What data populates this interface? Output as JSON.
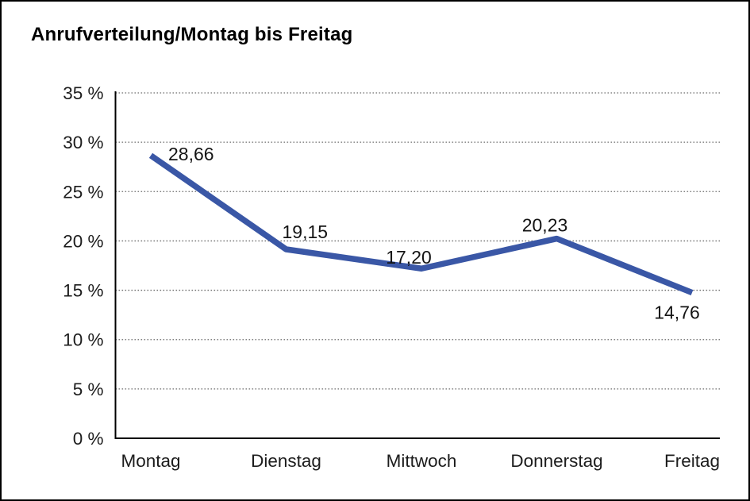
{
  "page": {
    "title": "Anrufverteilung/Montag bis Freitag"
  },
  "chart_data": {
    "type": "line",
    "title": "Anrufverteilung/Montag bis Freitag",
    "categories": [
      "Montag",
      "Dienstag",
      "Mittwoch",
      "Donnerstag",
      "Freitag"
    ],
    "series": [
      {
        "name": "Anrufverteilung",
        "values": [
          28.66,
          19.15,
          17.2,
          20.23,
          14.76
        ]
      }
    ],
    "point_labels": [
      "28,66",
      "19,15",
      "17,20",
      "20,23",
      "14,76"
    ],
    "y_ticks": {
      "values": [
        0,
        5,
        10,
        15,
        20,
        25,
        30,
        35
      ],
      "labels": [
        "0 %",
        "5 %",
        "10 %",
        "15 %",
        "20 %",
        "25 %",
        "30 %",
        "35 %"
      ]
    },
    "ylim": [
      0,
      35
    ],
    "xlabel": "",
    "ylabel": "",
    "grid": "horizontal-dotted",
    "legend": "none",
    "colors": {
      "line": "#3A57A6",
      "grid": "#6e6e6e",
      "axis": "#000000",
      "text": "#1a1a1a"
    }
  }
}
